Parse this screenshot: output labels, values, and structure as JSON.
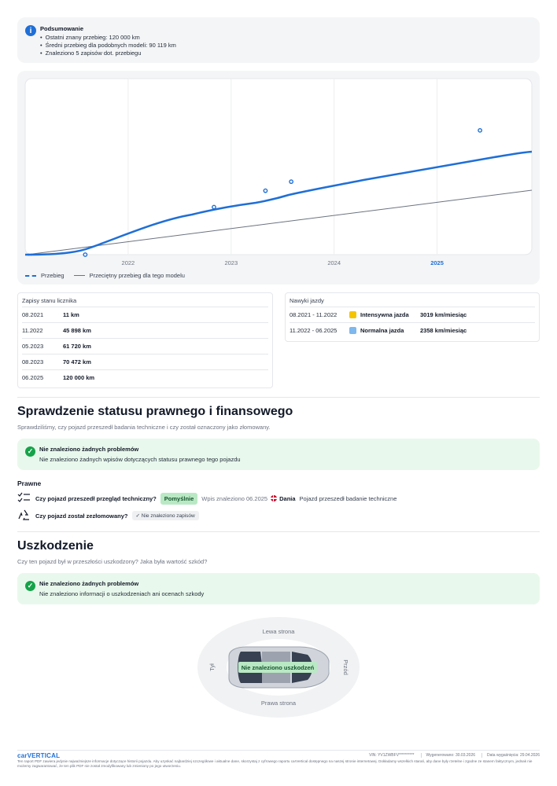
{
  "summary": {
    "title": "Podsumowanie",
    "items": [
      "Ostatni znany przebieg: 120 000 km",
      "Średni przebieg dla podobnych modeli: 90 119 km",
      "Znaleziono 5 zapisów dot. przebiegu"
    ]
  },
  "chart_data": {
    "type": "line",
    "x_ticks": [
      "2022",
      "2023",
      "2024",
      "2025"
    ],
    "x_tick_highlight": "2025",
    "grid": true,
    "series": [
      {
        "name": "Przebieg",
        "color": "#1f6fd6",
        "style": "dashed-marker",
        "points": [
          [
            "08.2021",
            11
          ],
          [
            "11.2022",
            45898
          ],
          [
            "05.2023",
            61720
          ],
          [
            "08.2023",
            70472
          ],
          [
            "06.2025",
            120000
          ]
        ]
      },
      {
        "name": "Przeciętny przebieg dla tego modelu",
        "color": "#6b7280",
        "style": "solid-thin"
      }
    ]
  },
  "readings": {
    "title": "Zapisy stanu licznika",
    "rows": [
      {
        "date": "08.2021",
        "value": "11 km"
      },
      {
        "date": "11.2022",
        "value": "45 898 km"
      },
      {
        "date": "05.2023",
        "value": "61 720 km"
      },
      {
        "date": "08.2023",
        "value": "70 472 km"
      },
      {
        "date": "06.2025",
        "value": "120 000 km"
      }
    ]
  },
  "habits": {
    "title": "Nawyki jazdy",
    "rows": [
      {
        "range": "08.2021 - 11.2022",
        "label": "Intensywna jazda",
        "rate": "3019 km/miesiąc",
        "color": "#f5c400"
      },
      {
        "range": "11.2022 - 06.2025",
        "label": "Normalna jazda",
        "rate": "2358 km/miesiąc",
        "color": "#7fb8ee"
      }
    ]
  },
  "legal": {
    "heading": "Sprawdzenie statusu prawnego i finansowego",
    "subtitle": "Sprawdziliśmy, czy pojazd przeszedł badania techniczne i czy został oznaczony jako złomowany.",
    "ok_title": "Nie znaleziono żadnych problemów",
    "ok_text": "Nie znaleziono żadnych wpisów dotyczących statusu prawnego tego pojazdu",
    "section": "Prawne",
    "inspection_q": "Czy pojazd przeszedł przegląd techniczny?",
    "inspection_badge": "Pomyślnie",
    "inspection_found": "Wpis znaleziono 06.2025",
    "inspection_country": "Dania",
    "inspection_note": "Pojazd przeszedł badanie techniczne",
    "scrap_q": "Czy pojazd został zezłomowany?",
    "scrap_badge": "Nie znaleziono zapisów"
  },
  "damage": {
    "heading": "Uszkodzenie",
    "subtitle": "Czy ten pojazd był w przeszłości uszkodzony? Jaka była wartość szkód?",
    "ok_title": "Nie znaleziono żadnych problemów",
    "ok_text": "Nie znaleziono informacji o uszkodzeniach ani ocenach szkody",
    "top": "Lewa strona",
    "bottom": "Prawa strona",
    "left": "Tył",
    "right": "Przód",
    "badge": "Nie znaleziono uszkodzeń"
  },
  "footer": {
    "logo": "carVERTICAL",
    "vin": "VIN: YV1ZWBFV**********",
    "generated": "Wygenerowano: 30.03.2026",
    "expires": "Data wygaśnięcia: 29.04.2026",
    "disclaimer": "Ten raport PDF zawiera jedynie najważniejsze informacje dotyczące historii pojazdu. Aby uzyskać najbardziej szczegółowe i aktualne dane, skorzystaj z cyfrowego raportu carVertical dostępnego na naszej stronie internetowej. Dokładamy wszelkich starań, aby dane były rzetelne i zgodne ze stanem faktycznym, jednak nie możemy zagwarantować, że ten plik PDF nie został zmodyfikowany lub zmieniony po jego utworzeniu."
  }
}
